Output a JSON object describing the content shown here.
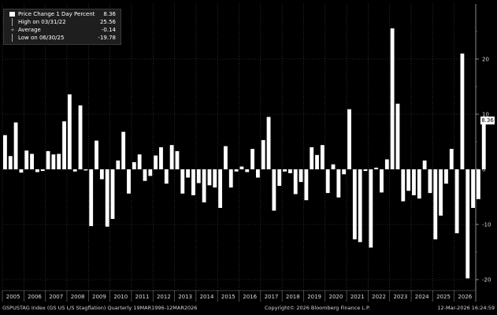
{
  "legend": {
    "series_label": "Price Change 1 Day Percent",
    "series_value": "8.36",
    "high_label": "High on 03/31/22",
    "high_value": "25.56",
    "avg_label": "Average",
    "avg_value": "-0.14",
    "low_label": "Low on 06/30/25",
    "low_value": "-19.78"
  },
  "last_value_flag": "8.36",
  "footer": {
    "left": "GSPUSTAG Index (GS US L/S Stagflation) Quarterly 19MAR1996-12MAR2026",
    "center": "Copyright© 2026 Bloomberg Finance L.P.",
    "right": "12-Mar-2026 16:24:59"
  },
  "colors": {
    "background": "#000000",
    "bar": "#ffffff",
    "grid": "#4a4a4a"
  },
  "chart_data": {
    "type": "bar",
    "ylim": [
      -22,
      30
    ],
    "yticks": [
      -20,
      -10,
      0,
      10,
      20
    ],
    "grid": true,
    "x_tick_labels": [
      "2005",
      "2006",
      "2007",
      "2008",
      "2009",
      "2010",
      "2011",
      "2012",
      "2013",
      "2014",
      "2015",
      "2016",
      "2017",
      "2018",
      "2019",
      "2020",
      "2021",
      "2022",
      "2023",
      "2024",
      "2025",
      "2026"
    ],
    "start_year": 2005,
    "values": [
      6.2,
      2.4,
      8.5,
      -0.6,
      3.4,
      2.8,
      -0.5,
      -0.3,
      3.3,
      2.7,
      2.8,
      8.7,
      13.6,
      -0.4,
      11.6,
      -0.2,
      -10.3,
      5.2,
      -1.8,
      -10.4,
      -9.0,
      1.6,
      6.8,
      -4.4,
      1.3,
      2.7,
      -2.1,
      -1.2,
      2.5,
      4.0,
      -2.6,
      4.4,
      3.3,
      -4.4,
      -1.5,
      -4.7,
      -2.5,
      -6.0,
      -2.9,
      -3.3,
      -7.0,
      4.2,
      -3.3,
      -0.4,
      0.5,
      -0.5,
      3.7,
      -1.5,
      5.3,
      9.5,
      -7.5,
      -3.0,
      -0.4,
      -0.7,
      -4.5,
      -2.3,
      -5.6,
      4.0,
      2.6,
      4.4,
      -4.3,
      0.9,
      -5.1,
      -0.9,
      10.9,
      -12.7,
      -13.2,
      -0.3,
      -14.2,
      0.3,
      -4.2,
      1.8,
      25.56,
      11.9,
      -5.8,
      -3.9,
      -4.7,
      -5.3,
      1.6,
      -4.3,
      -12.7,
      -8.4,
      -2.6,
      3.7,
      -11.6,
      21.0,
      -19.78,
      -7.0,
      -5.4,
      8.36
    ]
  }
}
